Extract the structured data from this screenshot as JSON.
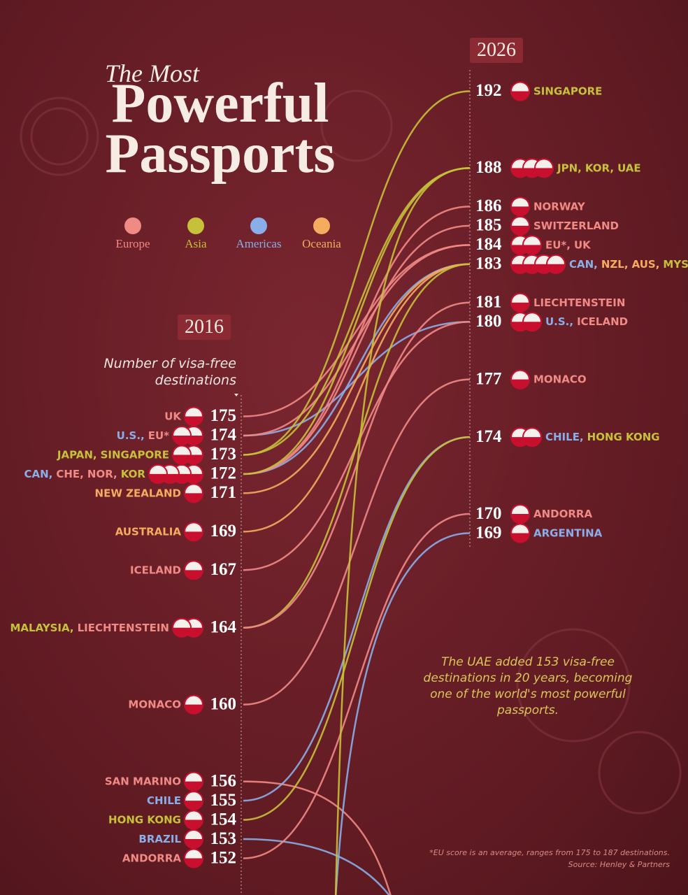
{
  "chart_data": {
    "type": "slope",
    "title_lead": "The Most",
    "title": "Powerful Passports",
    "legend": [
      {
        "name": "Europe",
        "color": "#f08a85"
      },
      {
        "name": "Asia",
        "color": "#c6c13a"
      },
      {
        "name": "Americas",
        "color": "#8aaee8"
      },
      {
        "name": "Oceania",
        "color": "#f5ac5f"
      }
    ],
    "x": [
      "2016",
      "2026"
    ],
    "axis_label": "Number of visa-free destinations",
    "ylim": [
      151,
      176
    ],
    "y2lim": [
      168,
      193
    ],
    "left_groups": [
      {
        "value": 175,
        "labels": [
          {
            "text": "UK",
            "region": "Europe"
          }
        ]
      },
      {
        "value": 174,
        "labels": [
          {
            "text": "U.S.,",
            "region": "Americas"
          },
          {
            "text": "EU*",
            "region": "Europe"
          }
        ]
      },
      {
        "value": 173,
        "labels": [
          {
            "text": "JAPAN,",
            "region": "Asia"
          },
          {
            "text": "SINGAPORE",
            "region": "Asia"
          }
        ]
      },
      {
        "value": 172,
        "labels": [
          {
            "text": "CAN,",
            "region": "Americas"
          },
          {
            "text": "CHE,",
            "region": "Europe"
          },
          {
            "text": "NOR,",
            "region": "Europe"
          },
          {
            "text": "KOR",
            "region": "Asia"
          }
        ]
      },
      {
        "value": 171,
        "labels": [
          {
            "text": "NEW ZEALAND",
            "region": "Oceania"
          }
        ]
      },
      {
        "value": 169,
        "labels": [
          {
            "text": "AUSTRALIA",
            "region": "Oceania"
          }
        ]
      },
      {
        "value": 167,
        "labels": [
          {
            "text": "ICELAND",
            "region": "Europe"
          }
        ]
      },
      {
        "value": 164,
        "labels": [
          {
            "text": "MALAYSIA,",
            "region": "Asia"
          },
          {
            "text": "LIECHTENSTEIN",
            "region": "Europe"
          }
        ]
      },
      {
        "value": 160,
        "labels": [
          {
            "text": "MONACO",
            "region": "Europe"
          }
        ]
      },
      {
        "value": 156,
        "labels": [
          {
            "text": "SAN MARINO",
            "region": "Europe"
          }
        ]
      },
      {
        "value": 155,
        "labels": [
          {
            "text": "CHILE",
            "region": "Americas"
          }
        ]
      },
      {
        "value": 154,
        "labels": [
          {
            "text": "HONG KONG",
            "region": "Asia"
          }
        ]
      },
      {
        "value": 153,
        "labels": [
          {
            "text": "BRAZIL",
            "region": "Americas"
          }
        ]
      },
      {
        "value": 152,
        "labels": [
          {
            "text": "ANDORRA",
            "region": "Europe"
          }
        ]
      }
    ],
    "right_groups": [
      {
        "value": 192,
        "labels": [
          {
            "text": "SINGAPORE",
            "region": "Asia"
          }
        ]
      },
      {
        "value": 188,
        "labels": [
          {
            "text": "JPN,",
            "region": "Asia"
          },
          {
            "text": "KOR,",
            "region": "Asia"
          },
          {
            "text": "UAE",
            "region": "Asia"
          }
        ]
      },
      {
        "value": 186,
        "labels": [
          {
            "text": "NORWAY",
            "region": "Europe"
          }
        ]
      },
      {
        "value": 185,
        "labels": [
          {
            "text": "SWITZERLAND",
            "region": "Europe"
          }
        ]
      },
      {
        "value": 184,
        "labels": [
          {
            "text": "EU*,",
            "region": "Europe"
          },
          {
            "text": "UK",
            "region": "Europe"
          }
        ]
      },
      {
        "value": 183,
        "labels": [
          {
            "text": "CAN,",
            "region": "Americas"
          },
          {
            "text": "NZL,",
            "region": "Oceania"
          },
          {
            "text": "AUS,",
            "region": "Oceania"
          },
          {
            "text": "MYS",
            "region": "Asia"
          }
        ]
      },
      {
        "value": 181,
        "labels": [
          {
            "text": "LIECHTENSTEIN",
            "region": "Europe"
          }
        ]
      },
      {
        "value": 180,
        "labels": [
          {
            "text": "U.S.,",
            "region": "Americas"
          },
          {
            "text": "ICELAND",
            "region": "Europe"
          }
        ]
      },
      {
        "value": 177,
        "labels": [
          {
            "text": "MONACO",
            "region": "Europe"
          }
        ]
      },
      {
        "value": 174,
        "labels": [
          {
            "text": "CHILE,",
            "region": "Americas"
          },
          {
            "text": "HONG KONG",
            "region": "Asia"
          }
        ]
      },
      {
        "value": 170,
        "labels": [
          {
            "text": "ANDORRA",
            "region": "Europe"
          }
        ]
      },
      {
        "value": 169,
        "labels": [
          {
            "text": "ARGENTINA",
            "region": "Americas"
          }
        ]
      }
    ],
    "series": [
      {
        "region": "Europe",
        "values": [
          175,
          184
        ]
      },
      {
        "region": "Americas",
        "values": [
          174,
          180
        ]
      },
      {
        "region": "Europe",
        "values": [
          174,
          184
        ]
      },
      {
        "region": "Asia",
        "values": [
          173,
          188
        ]
      },
      {
        "region": "Asia",
        "values": [
          173,
          192
        ]
      },
      {
        "region": "Americas",
        "values": [
          172,
          183
        ]
      },
      {
        "region": "Europe",
        "values": [
          172,
          185
        ]
      },
      {
        "region": "Europe",
        "values": [
          172,
          186
        ]
      },
      {
        "region": "Asia",
        "values": [
          172,
          188
        ]
      },
      {
        "region": "Oceania",
        "values": [
          171,
          183
        ]
      },
      {
        "region": "Oceania",
        "values": [
          169,
          183
        ]
      },
      {
        "region": "Europe",
        "values": [
          167,
          180
        ]
      },
      {
        "region": "Asia",
        "values": [
          164,
          183
        ]
      },
      {
        "region": "Europe",
        "values": [
          164,
          181
        ]
      },
      {
        "region": "Europe",
        "values": [
          160,
          177
        ]
      },
      {
        "region": "Europe",
        "values": [
          156,
          null
        ]
      },
      {
        "region": "Americas",
        "values": [
          155,
          174
        ]
      },
      {
        "region": "Asia",
        "values": [
          154,
          174
        ]
      },
      {
        "region": "Americas",
        "values": [
          153,
          null
        ]
      },
      {
        "region": "Europe",
        "values": [
          152,
          170
        ]
      },
      {
        "region": "Americas",
        "values": [
          null,
          169
        ]
      },
      {
        "region": "Asia",
        "values": [
          null,
          188
        ]
      }
    ],
    "annotation": "The UAE added 153 visa-free destinations in 20 years, becoming one of the world's most powerful passports.",
    "footnote": "*EU score is an average, ranges from 175 to 187 destinations.",
    "source": "Source: Henley & Partners"
  }
}
